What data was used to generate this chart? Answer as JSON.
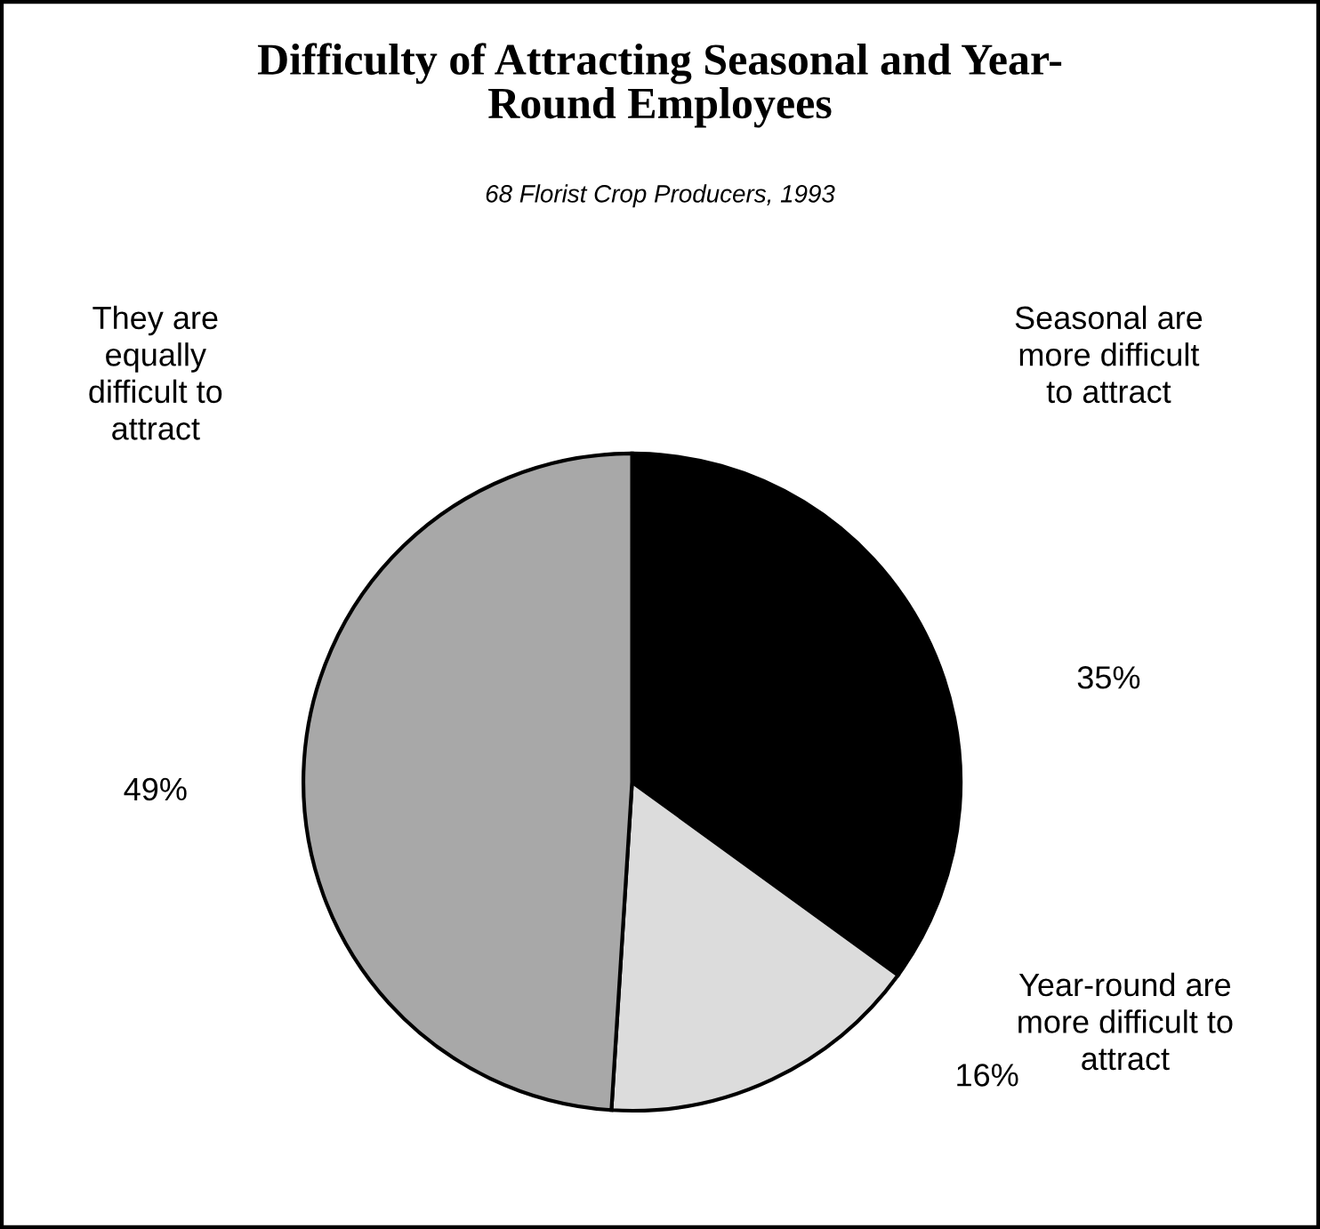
{
  "chart_data": {
    "type": "pie",
    "title": "Difficulty of Attracting Seasonal and Year-\nRound Employees",
    "subtitle": "68 Florist Crop Producers, 1993",
    "categories": [
      "Seasonal are\nmore difficult\nto attract",
      "Year-round are\nmore difficult to\nattract",
      "They are\nequally\ndifficult to\nattract"
    ],
    "values": [
      35,
      16,
      49
    ],
    "value_labels": [
      "35%",
      "16%",
      "49%"
    ],
    "colors": [
      "#000000",
      "#dcdcdc",
      "#a8a8a8"
    ],
    "legend": false
  }
}
